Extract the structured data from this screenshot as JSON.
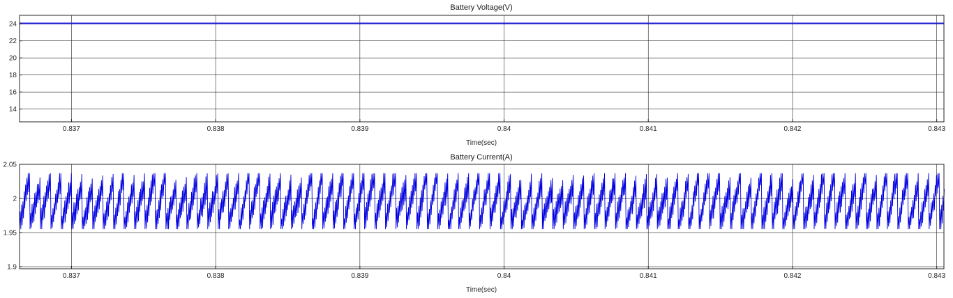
{
  "chart_data": [
    {
      "type": "line",
      "title": "Battery Voltage(V)",
      "xlabel": "Time(sec)",
      "ylabel": "",
      "xlim": [
        0.83664,
        0.84305
      ],
      "ylim": [
        12.5,
        25
      ],
      "x_ticks": [
        0.837,
        0.838,
        0.839,
        0.84,
        0.841,
        0.842,
        0.843
      ],
      "x_tick_labels": [
        "0.837",
        "0.838",
        "0.839",
        "0.84",
        "0.841",
        "0.842",
        "0.843"
      ],
      "y_ticks": [
        14,
        16,
        18,
        20,
        22,
        24
      ],
      "y_tick_labels": [
        "14",
        "16",
        "18",
        "20",
        "22",
        "24"
      ],
      "grid": true,
      "series": [
        {
          "color": "#1f1fd0",
          "x": [
            0.83664,
            0.84305
          ],
          "y": [
            24.05,
            24.05
          ]
        }
      ]
    },
    {
      "type": "line",
      "title": "Battery Current(A)",
      "xlabel": "Time(sec)",
      "ylabel": "",
      "xlim": [
        0.83664,
        0.84305
      ],
      "ylim": [
        1.897,
        2.05
      ],
      "x_ticks": [
        0.837,
        0.838,
        0.839,
        0.84,
        0.841,
        0.842,
        0.843
      ],
      "x_tick_labels": [
        "0.837",
        "0.838",
        "0.839",
        "0.84",
        "0.841",
        "0.842",
        "0.843"
      ],
      "y_ticks": [
        1.9,
        1.95,
        2,
        2.05
      ],
      "y_tick_labels": [
        "1.9",
        "1.95",
        "2",
        "2.05"
      ],
      "grid": true,
      "series": [
        {
          "color": "#0000e0",
          "pattern": "sawtooth-ripple",
          "mean": 1.995,
          "min": 1.955,
          "max": 2.037,
          "ripple_period": 7.25e-05
        }
      ]
    }
  ]
}
